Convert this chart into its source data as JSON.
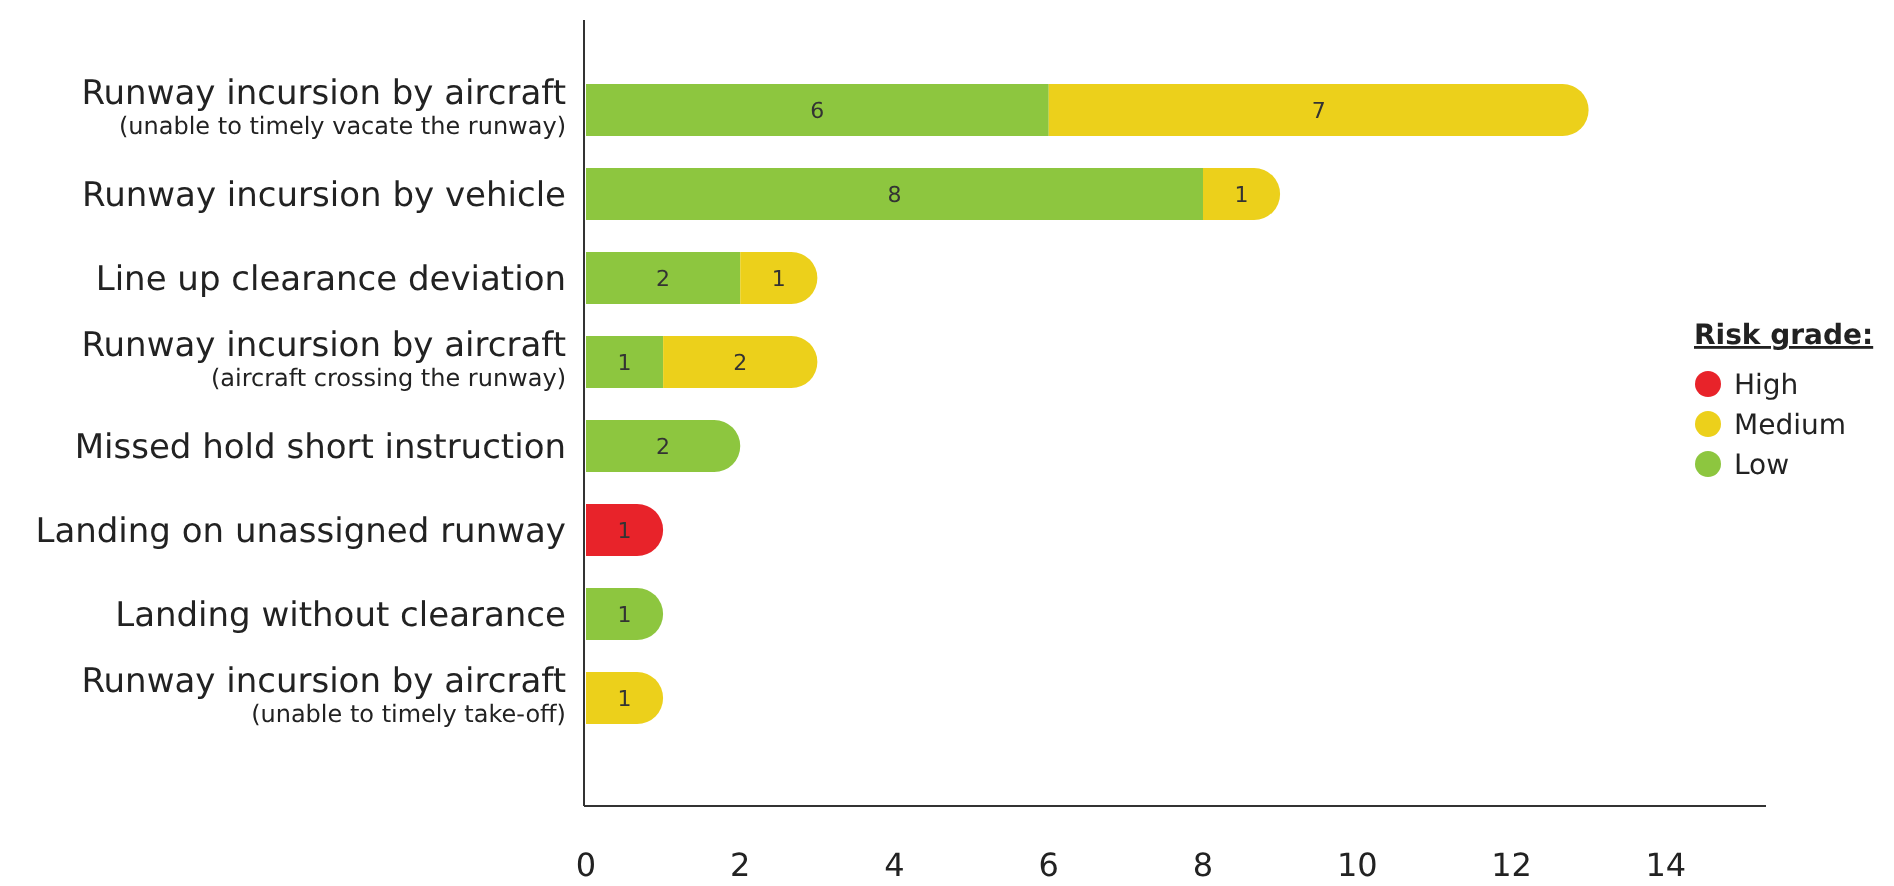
{
  "chart_data": {
    "type": "bar",
    "orientation": "horizontal",
    "stacked": true,
    "categories": [
      "Runway incursion by aircraft\n(unable to timely vacate the runway)",
      "Runway incursion by vehicle",
      "Line up clearance deviation",
      "Runway incursion by aircraft\n(aircraft crossing the runway)",
      "Missed hold short instruction",
      "Landing on unassigned runway",
      "Landing without clearance",
      "Runway incursion by aircraft\n(unable to timely take-off)"
    ],
    "series": [
      {
        "name": "Low",
        "color": "#8dc63f",
        "values": [
          6,
          8,
          2,
          1,
          2,
          null,
          1,
          null
        ]
      },
      {
        "name": "Medium",
        "color": "#ecd01b",
        "values": [
          7,
          1,
          1,
          2,
          null,
          null,
          null,
          1
        ]
      },
      {
        "name": "High",
        "color": "#e8232a",
        "values": [
          null,
          null,
          null,
          null,
          null,
          1,
          null,
          null
        ]
      }
    ],
    "xlim": [
      0,
      15.3
    ],
    "xticks": [
      0,
      2,
      4,
      6,
      8,
      10,
      12,
      14
    ],
    "legend": "right",
    "legend_title": "Risk grade:",
    "data_labels": true,
    "grid": false
  }
}
